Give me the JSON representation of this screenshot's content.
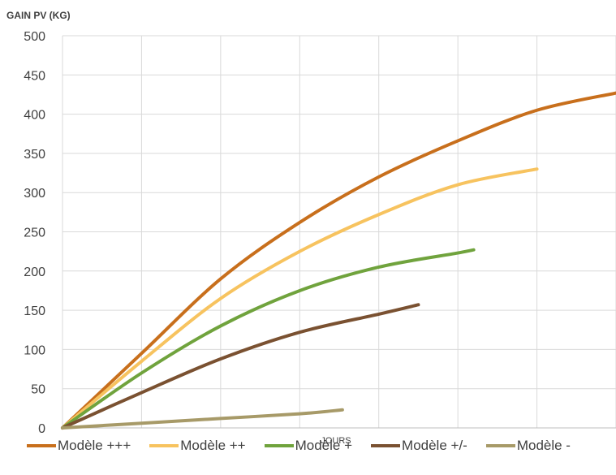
{
  "chart_data": {
    "type": "line",
    "ylabel": "GAIN PV (KG)",
    "xlabel": "JOURS",
    "ylim": [
      0,
      500
    ],
    "yticks": [
      0,
      50,
      100,
      150,
      200,
      250,
      300,
      350,
      400,
      450,
      500
    ],
    "vertical_gridlines": 7,
    "legend_position": "bottom",
    "grid": true,
    "series": [
      {
        "name": "Modèle +++",
        "color": "#c86f1c",
        "points": [
          [
            0,
            0
          ],
          [
            0.5,
            95
          ],
          [
            1,
            190
          ],
          [
            1.5,
            262
          ],
          [
            2,
            320
          ],
          [
            2.5,
            366
          ],
          [
            3,
            405
          ],
          [
            3.5,
            427
          ]
        ]
      },
      {
        "name": "Modèle ++",
        "color": "#f7c35f",
        "points": [
          [
            0,
            0
          ],
          [
            0.5,
            85
          ],
          [
            1,
            165
          ],
          [
            1.5,
            225
          ],
          [
            2,
            272
          ],
          [
            2.5,
            310
          ],
          [
            3,
            330
          ]
        ]
      },
      {
        "name": "Modèle +",
        "color": "#70a33d",
        "points": [
          [
            0,
            0
          ],
          [
            0.5,
            70
          ],
          [
            1,
            130
          ],
          [
            1.5,
            175
          ],
          [
            2,
            205
          ],
          [
            2.5,
            223
          ],
          [
            2.6,
            227
          ]
        ]
      },
      {
        "name": "Modèle +/-",
        "color": "#7a5131",
        "points": [
          [
            0,
            0
          ],
          [
            0.5,
            45
          ],
          [
            1,
            88
          ],
          [
            1.5,
            122
          ],
          [
            2,
            145
          ],
          [
            2.25,
            157
          ]
        ]
      },
      {
        "name": "Modèle -",
        "color": "#a79a68",
        "points": [
          [
            0,
            0
          ],
          [
            0.5,
            6
          ],
          [
            1,
            12
          ],
          [
            1.5,
            18
          ],
          [
            1.77,
            23
          ]
        ]
      }
    ]
  }
}
